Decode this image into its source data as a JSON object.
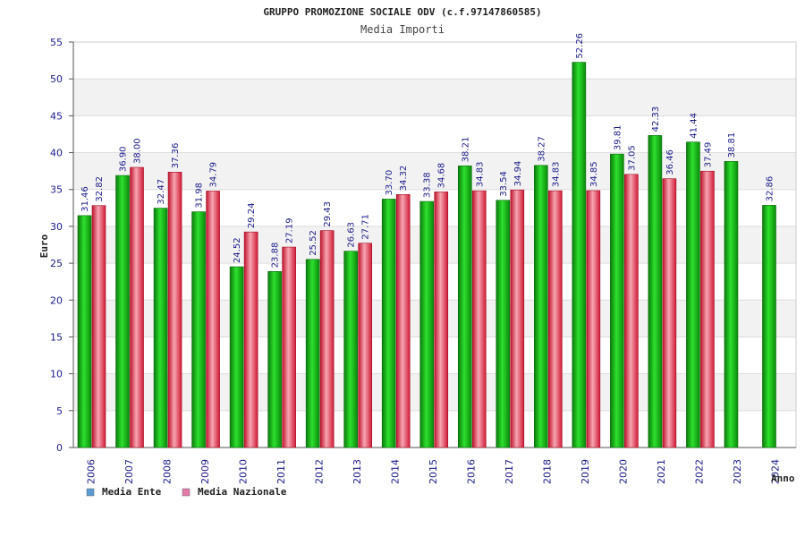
{
  "chart_data": {
    "type": "bar",
    "title": "GRUPPO PROMOZIONE SOCIALE ODV (c.f.97147860585)",
    "subtitle": "Media Importi",
    "xlabel": "Anno",
    "ylabel": "Euro",
    "ylim": [
      0,
      55
    ],
    "yticks": [
      0,
      5,
      10,
      15,
      20,
      25,
      30,
      35,
      40,
      45,
      50,
      55
    ],
    "grid": true,
    "legend_position": "bottom-left",
    "categories": [
      "2006",
      "2007",
      "2008",
      "2009",
      "2010",
      "2011",
      "2012",
      "2013",
      "2014",
      "2015",
      "2016",
      "2017",
      "2018",
      "2019",
      "2020",
      "2021",
      "2022",
      "2023",
      "2024"
    ],
    "series": [
      {
        "name": "Media Ente",
        "color": "#12b012",
        "values": [
          31.46,
          36.9,
          32.47,
          31.98,
          24.52,
          23.88,
          25.52,
          26.63,
          33.7,
          33.38,
          38.21,
          33.54,
          38.27,
          52.26,
          39.81,
          42.33,
          41.44,
          38.81,
          32.86
        ],
        "labels": [
          "31.46",
          "36.90",
          "32.47",
          "31.98",
          "24.52",
          "23.88",
          "25.52",
          "26.63",
          "33.70",
          "33.38",
          "38.21",
          "33.54",
          "38.27",
          "52.26",
          "39.81",
          "42.33",
          "41.44",
          "38.81",
          "32.86"
        ]
      },
      {
        "name": "Media Nazionale",
        "color": "#e03a52",
        "values": [
          32.82,
          38.0,
          37.36,
          34.79,
          29.24,
          27.19,
          29.43,
          27.71,
          34.32,
          34.68,
          34.83,
          34.94,
          34.83,
          34.85,
          37.05,
          36.46,
          37.49,
          null,
          null
        ],
        "labels": [
          "32.82",
          "38.00",
          "37.36",
          "34.79",
          "29.24",
          "27.19",
          "29.43",
          "27.71",
          "34.32",
          "34.68",
          "34.83",
          "34.94",
          "34.83",
          "34.85",
          "37.05",
          "36.46",
          "37.49",
          null,
          null
        ]
      }
    ],
    "legend": [
      {
        "name": "Media Ente",
        "swatch_color": "#5b9bd5"
      },
      {
        "name": "Media Nazionale",
        "swatch_color": "#e37aa8"
      }
    ]
  }
}
